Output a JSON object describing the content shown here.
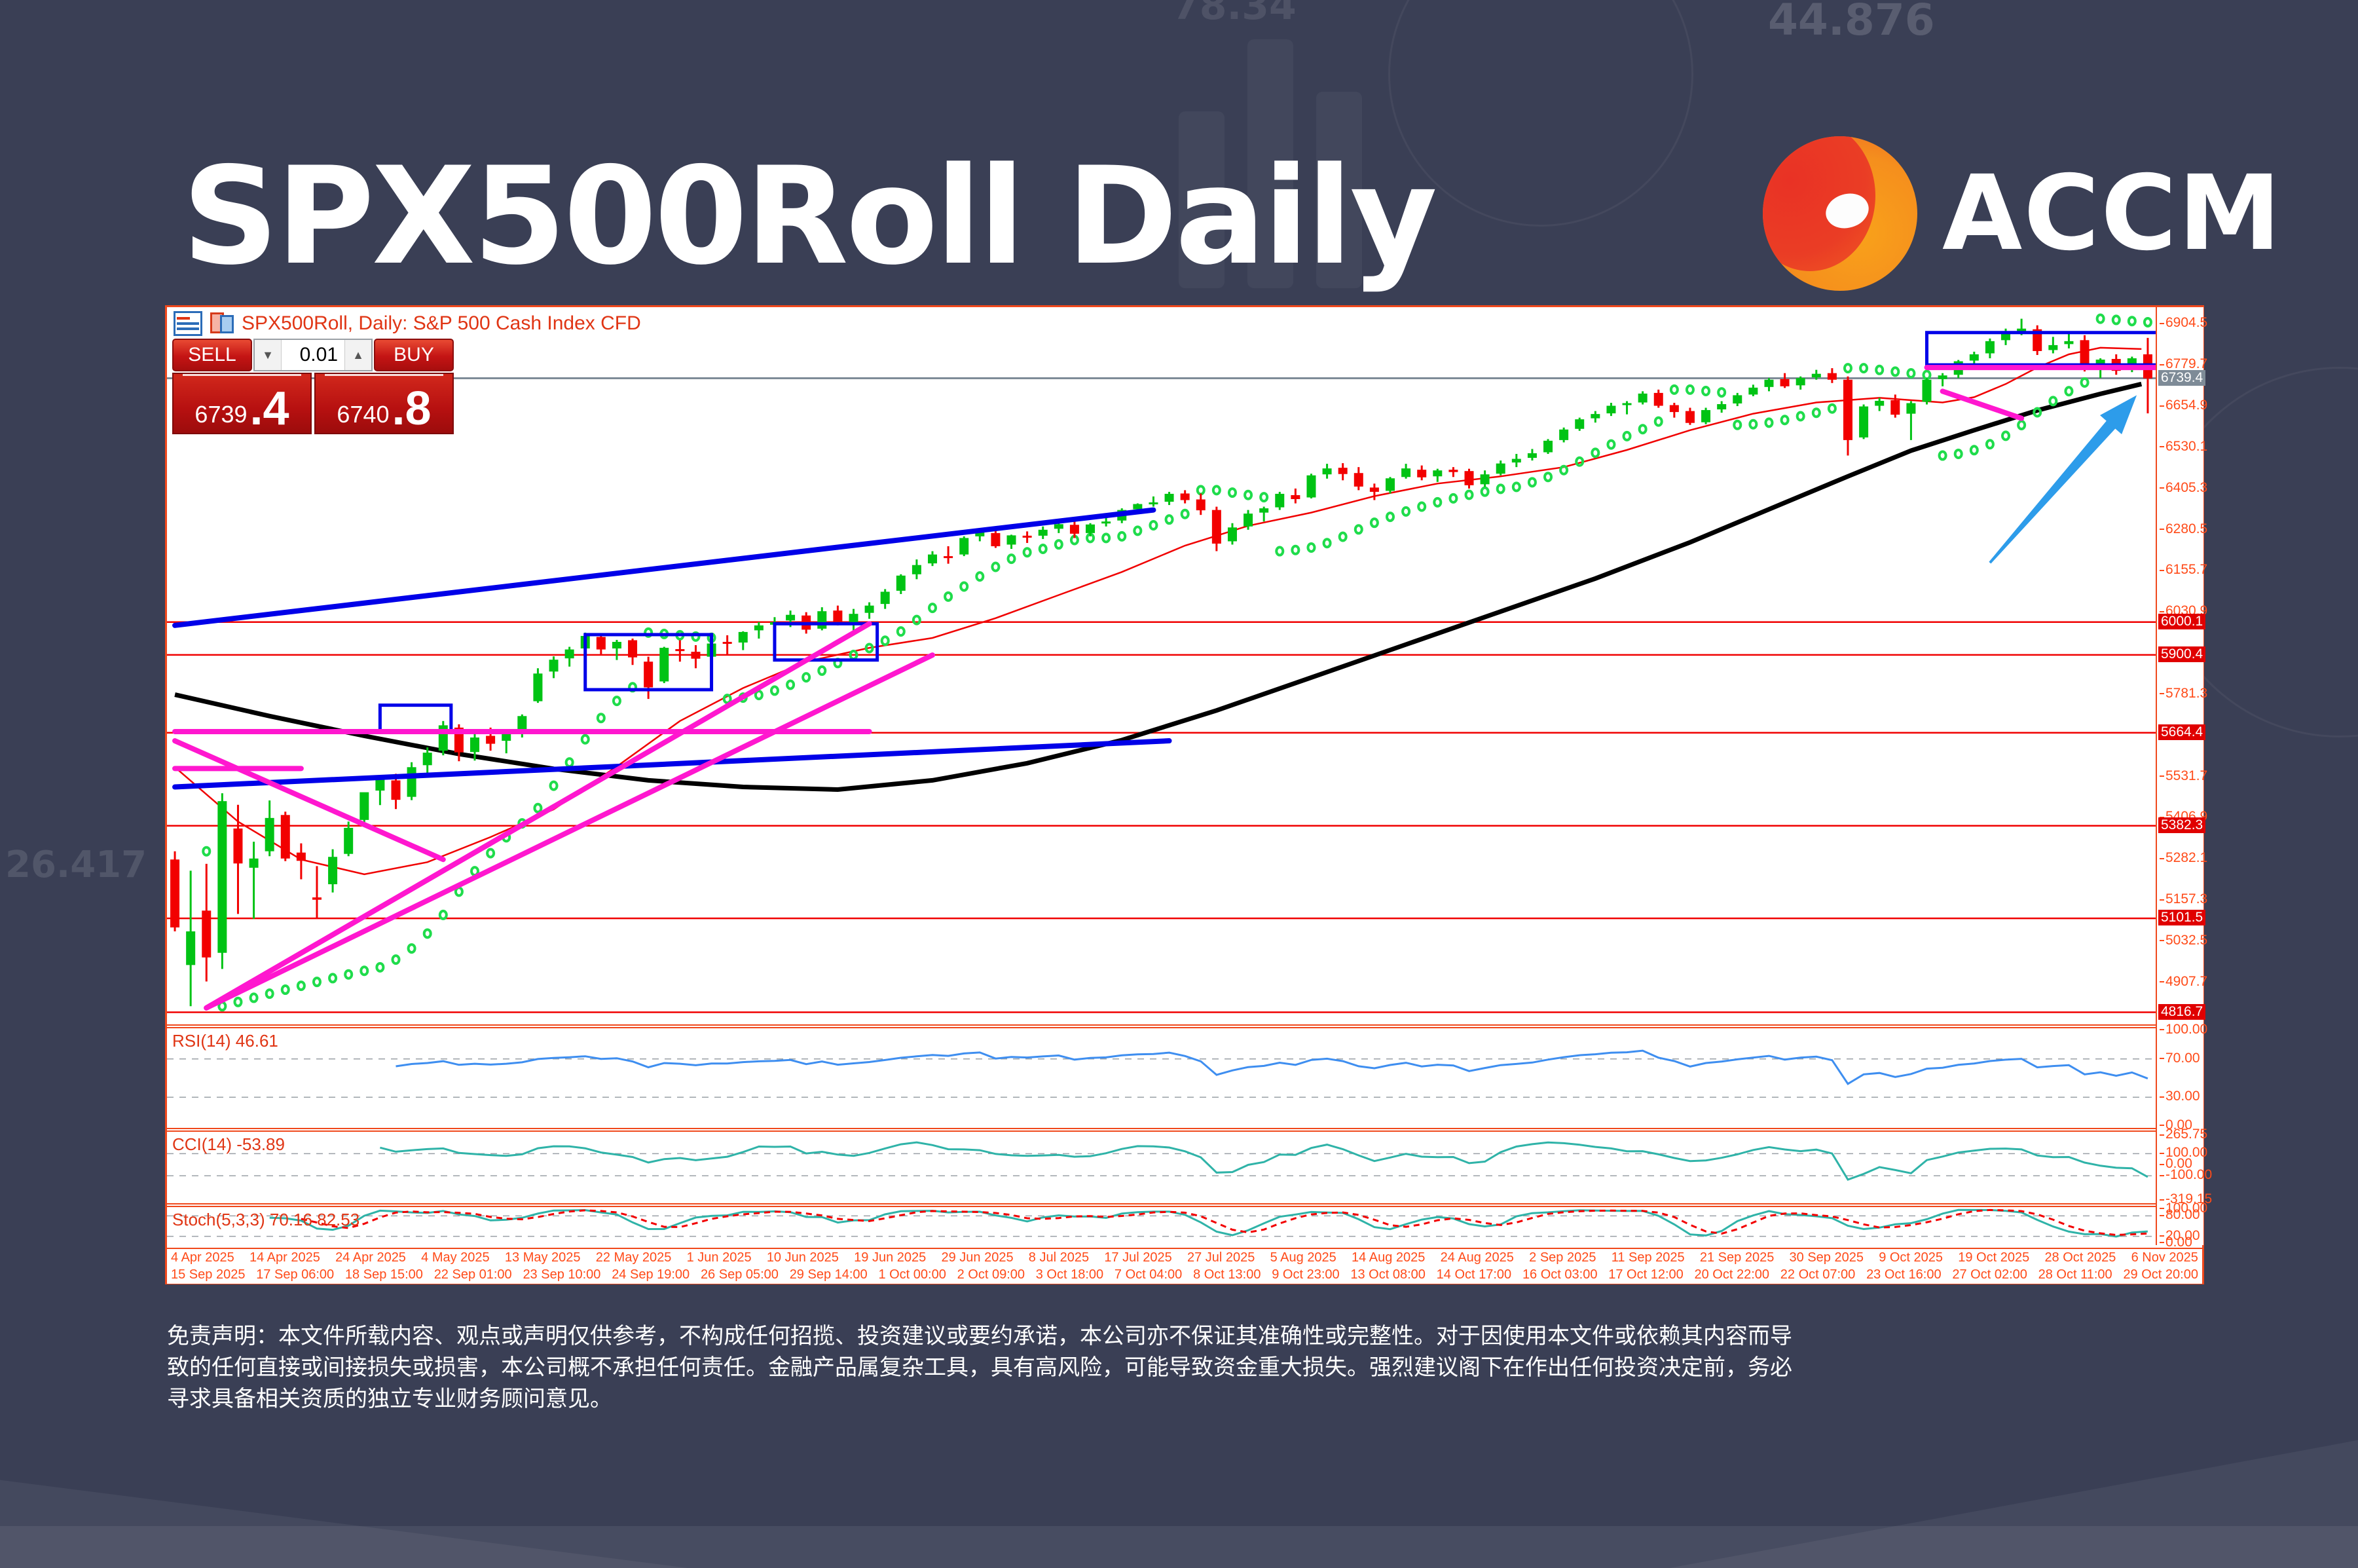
{
  "page": {
    "title": "SPX500Roll Daily",
    "brand": "ACCM"
  },
  "background": {
    "watermarks": [
      "44.876",
      "78.34",
      "26.417"
    ]
  },
  "chart_window": {
    "header": {
      "symbol_line": "SPX500Roll, Daily:  S&P 500 Cash Index CFD"
    },
    "trade_panel": {
      "sell_label": "SELL",
      "buy_label": "BUY",
      "volume": "0.01",
      "sell_price_int": "6739",
      "sell_price_frac": ".4",
      "buy_price_int": "6740",
      "buy_price_frac": ".8",
      "spin_down": "▼",
      "spin_up": "▲"
    }
  },
  "chart_data": {
    "type": "candlestick",
    "title": "SPX500Roll Daily",
    "symbol": "SPX500Roll",
    "timeframe": "Daily",
    "ylim": [
      4780,
      6955
    ],
    "current_price": 6739.4,
    "axis_ticks": [
      6904.5,
      6779.7,
      6654.9,
      6530.1,
      6405.3,
      6280.5,
      6155.7,
      6030.9,
      5781.3,
      5531.7,
      5406.9,
      5282.1,
      5157.3,
      5032.5,
      4907.7
    ],
    "level_badges": [
      6000.1,
      5900.4,
      5664.4,
      5382.3,
      5101.5,
      4816.7
    ],
    "candles": [
      [
        5280,
        5305,
        5062,
        5074
      ],
      [
        4960,
        5246,
        4835,
        5062
      ],
      [
        5125,
        5267,
        4910,
        4983
      ],
      [
        4997,
        5481,
        4948,
        5457
      ],
      [
        5374,
        5446,
        5115,
        5268
      ],
      [
        5255,
        5334,
        5100,
        5283
      ],
      [
        5305,
        5459,
        5290,
        5406
      ],
      [
        5415,
        5425,
        5275,
        5283
      ],
      [
        5301,
        5329,
        5220,
        5276
      ],
      [
        5165,
        5260,
        5101,
        5158
      ],
      [
        5205,
        5311,
        5180,
        5288
      ],
      [
        5297,
        5395,
        5290,
        5376
      ],
      [
        5400,
        5470,
        5385,
        5484
      ],
      [
        5489,
        5535,
        5445,
        5525
      ],
      [
        5520,
        5540,
        5433,
        5461
      ],
      [
        5470,
        5575,
        5460,
        5560
      ],
      [
        5566,
        5620,
        5540,
        5604
      ],
      [
        5610,
        5700,
        5596,
        5687
      ],
      [
        5680,
        5690,
        5578,
        5605
      ],
      [
        5606,
        5665,
        5580,
        5650
      ],
      [
        5655,
        5680,
        5610,
        5631
      ],
      [
        5640,
        5672,
        5602,
        5663
      ],
      [
        5670,
        5720,
        5650,
        5715
      ],
      [
        5760,
        5860,
        5755,
        5844
      ],
      [
        5850,
        5896,
        5830,
        5886
      ],
      [
        5890,
        5925,
        5865,
        5917
      ],
      [
        5920,
        5968,
        5905,
        5958
      ],
      [
        5955,
        5962,
        5900,
        5917
      ],
      [
        5920,
        5946,
        5885,
        5940
      ],
      [
        5945,
        5950,
        5870,
        5893
      ],
      [
        5880,
        5895,
        5767,
        5802
      ],
      [
        5820,
        5925,
        5815,
        5922
      ],
      [
        5918,
        5945,
        5880,
        5912
      ],
      [
        5910,
        5930,
        5860,
        5889
      ],
      [
        5895,
        5940,
        5880,
        5935
      ],
      [
        5940,
        5960,
        5900,
        5936
      ],
      [
        5938,
        5972,
        5915,
        5970
      ],
      [
        5975,
        6000,
        5950,
        5990
      ],
      [
        5992,
        6015,
        5960,
        6000
      ],
      [
        6005,
        6035,
        5985,
        6022
      ],
      [
        6020,
        6030,
        5965,
        5977
      ],
      [
        5980,
        6045,
        5975,
        6033
      ],
      [
        6035,
        6050,
        5990,
        5998
      ],
      [
        6000,
        6040,
        5975,
        6025
      ],
      [
        6028,
        6060,
        6010,
        6050
      ],
      [
        6055,
        6100,
        6040,
        6092
      ],
      [
        6095,
        6145,
        6085,
        6141
      ],
      [
        6145,
        6190,
        6130,
        6173
      ],
      [
        6178,
        6215,
        6170,
        6205
      ],
      [
        6200,
        6230,
        6177,
        6198
      ],
      [
        6205,
        6260,
        6200,
        6255
      ],
      [
        6260,
        6284,
        6245,
        6279
      ],
      [
        6270,
        6290,
        6225,
        6230
      ],
      [
        6235,
        6265,
        6222,
        6263
      ],
      [
        6262,
        6275,
        6240,
        6259
      ],
      [
        6262,
        6290,
        6252,
        6280
      ],
      [
        6283,
        6302,
        6270,
        6297
      ],
      [
        6295,
        6305,
        6255,
        6268
      ],
      [
        6270,
        6300,
        6260,
        6296
      ],
      [
        6300,
        6318,
        6290,
        6305
      ],
      [
        6308,
        6345,
        6300,
        6340
      ],
      [
        6342,
        6360,
        6330,
        6358
      ],
      [
        6360,
        6381,
        6350,
        6363
      ],
      [
        6365,
        6395,
        6355,
        6389
      ],
      [
        6390,
        6400,
        6360,
        6370
      ],
      [
        6372,
        6390,
        6325,
        6339
      ],
      [
        6340,
        6350,
        6215,
        6238
      ],
      [
        6245,
        6300,
        6235,
        6287
      ],
      [
        6290,
        6340,
        6280,
        6329
      ],
      [
        6332,
        6350,
        6305,
        6345
      ],
      [
        6348,
        6395,
        6340,
        6389
      ],
      [
        6385,
        6405,
        6360,
        6373
      ],
      [
        6378,
        6450,
        6375,
        6445
      ],
      [
        6448,
        6480,
        6435,
        6466
      ],
      [
        6468,
        6482,
        6430,
        6449
      ],
      [
        6452,
        6470,
        6400,
        6411
      ],
      [
        6408,
        6420,
        6370,
        6395
      ],
      [
        6398,
        6440,
        6390,
        6436
      ],
      [
        6440,
        6480,
        6435,
        6466
      ],
      [
        6462,
        6475,
        6430,
        6439
      ],
      [
        6442,
        6465,
        6425,
        6460
      ],
      [
        6462,
        6470,
        6440,
        6455
      ],
      [
        6458,
        6465,
        6405,
        6415
      ],
      [
        6418,
        6460,
        6410,
        6448
      ],
      [
        6450,
        6490,
        6445,
        6481
      ],
      [
        6484,
        6510,
        6470,
        6495
      ],
      [
        6498,
        6525,
        6490,
        6512
      ],
      [
        6515,
        6555,
        6510,
        6550
      ],
      [
        6552,
        6590,
        6545,
        6584
      ],
      [
        6586,
        6620,
        6580,
        6615
      ],
      [
        6618,
        6640,
        6605,
        6631
      ],
      [
        6633,
        6665,
        6625,
        6656
      ],
      [
        6658,
        6670,
        6630,
        6664
      ],
      [
        6666,
        6700,
        6660,
        6693
      ],
      [
        6695,
        6705,
        6650,
        6656
      ],
      [
        6658,
        6665,
        6620,
        6637
      ],
      [
        6640,
        6650,
        6598,
        6604
      ],
      [
        6606,
        6650,
        6600,
        6643
      ],
      [
        6645,
        6670,
        6635,
        6661
      ],
      [
        6663,
        6695,
        6655,
        6688
      ],
      [
        6690,
        6720,
        6685,
        6711
      ],
      [
        6713,
        6740,
        6700,
        6735
      ],
      [
        6737,
        6755,
        6710,
        6715
      ],
      [
        6718,
        6745,
        6705,
        6740
      ],
      [
        6742,
        6765,
        6735,
        6753
      ],
      [
        6755,
        6770,
        6725,
        6735
      ],
      [
        6735,
        6745,
        6505,
        6552
      ],
      [
        6560,
        6660,
        6555,
        6654
      ],
      [
        6656,
        6680,
        6640,
        6671
      ],
      [
        6673,
        6690,
        6620,
        6629
      ],
      [
        6632,
        6670,
        6552,
        6664
      ],
      [
        6668,
        6740,
        6660,
        6735
      ],
      [
        6737,
        6755,
        6715,
        6748
      ],
      [
        6750,
        6795,
        6740,
        6791
      ],
      [
        6793,
        6820,
        6780,
        6812
      ],
      [
        6815,
        6860,
        6800,
        6852
      ],
      [
        6855,
        6890,
        6840,
        6875
      ],
      [
        6878,
        6920,
        6870,
        6890
      ],
      [
        6888,
        6900,
        6810,
        6822
      ],
      [
        6825,
        6865,
        6815,
        6840
      ],
      [
        6843,
        6880,
        6830,
        6852
      ],
      [
        6855,
        6870,
        6760,
        6771
      ],
      [
        6774,
        6800,
        6740,
        6796
      ],
      [
        6798,
        6812,
        6750,
        6762
      ],
      [
        6765,
        6805,
        6758,
        6800
      ],
      [
        6812,
        6862,
        6633,
        6739
      ]
    ],
    "ma_black": [
      [
        0,
        5780
      ],
      [
        6,
        5715
      ],
      [
        12,
        5655
      ],
      [
        18,
        5600
      ],
      [
        24,
        5555
      ],
      [
        30,
        5520
      ],
      [
        36,
        5500
      ],
      [
        42,
        5492
      ],
      [
        48,
        5520
      ],
      [
        54,
        5572
      ],
      [
        60,
        5642
      ],
      [
        66,
        5732
      ],
      [
        72,
        5832
      ],
      [
        78,
        5932
      ],
      [
        84,
        6032
      ],
      [
        90,
        6132
      ],
      [
        96,
        6242
      ],
      [
        102,
        6362
      ],
      [
        106,
        6442
      ],
      [
        110,
        6520
      ],
      [
        114,
        6582
      ],
      [
        118,
        6642
      ],
      [
        122,
        6692
      ],
      [
        124.6,
        6722
      ]
    ],
    "ma_red": [
      [
        0,
        5560
      ],
      [
        4,
        5395
      ],
      [
        8,
        5280
      ],
      [
        12,
        5235
      ],
      [
        16,
        5272
      ],
      [
        20,
        5348
      ],
      [
        24,
        5432
      ],
      [
        28,
        5562
      ],
      [
        32,
        5700
      ],
      [
        36,
        5800
      ],
      [
        40,
        5880
      ],
      [
        44,
        5922
      ],
      [
        48,
        5952
      ],
      [
        52,
        6012
      ],
      [
        56,
        6082
      ],
      [
        60,
        6152
      ],
      [
        64,
        6232
      ],
      [
        68,
        6292
      ],
      [
        72,
        6332
      ],
      [
        76,
        6382
      ],
      [
        80,
        6420
      ],
      [
        84,
        6442
      ],
      [
        88,
        6470
      ],
      [
        92,
        6522
      ],
      [
        96,
        6582
      ],
      [
        100,
        6632
      ],
      [
        104,
        6666
      ],
      [
        108,
        6680
      ],
      [
        112,
        6666
      ],
      [
        114,
        6682
      ],
      [
        116,
        6722
      ],
      [
        118,
        6772
      ],
      [
        120,
        6812
      ],
      [
        122,
        6832
      ],
      [
        124.6,
        6828
      ]
    ],
    "trendlines": [
      {
        "color": "#0000e8",
        "from": [
          0,
          5990
        ],
        "to": [
          62,
          6340
        ],
        "width": 8
      },
      {
        "color": "#0000e8",
        "from": [
          0,
          5500
        ],
        "to": [
          63,
          5640
        ],
        "width": 8
      },
      {
        "color": "#ff17cf",
        "from": [
          0,
          5668
        ],
        "to": [
          44,
          5668
        ],
        "width": 8
      },
      {
        "color": "#ff17cf",
        "from": [
          0,
          5556
        ],
        "to": [
          8,
          5556
        ],
        "width": 8
      },
      {
        "color": "#ff17cf",
        "from": [
          0,
          5640
        ],
        "to": [
          17,
          5280
        ],
        "width": 8
      },
      {
        "color": "#ff17cf",
        "from": [
          2,
          4830
        ],
        "to": [
          44,
          5995
        ],
        "width": 8
      },
      {
        "color": "#ff17cf",
        "from": [
          2,
          4830
        ],
        "to": [
          48,
          5900
        ],
        "width": 8
      },
      {
        "color": "#ff17cf",
        "from": [
          2,
          4830
        ],
        "to": [
          24,
          5440
        ],
        "width": 8
      },
      {
        "color": "#ff17cf",
        "from": [
          111,
          6772
        ],
        "to": [
          125.6,
          6772
        ],
        "width": 8
      },
      {
        "color": "#ff17cf",
        "from": [
          112,
          6700
        ],
        "to": [
          117,
          6618
        ],
        "width": 8
      }
    ],
    "boxes": [
      {
        "from": [
          13,
          5748
        ],
        "to": [
          17.5,
          5665
        ]
      },
      {
        "from": [
          26,
          5962
        ],
        "to": [
          34,
          5795
        ]
      },
      {
        "from": [
          38,
          5995
        ],
        "to": [
          44.5,
          5885
        ]
      },
      {
        "from": [
          111,
          6878
        ],
        "to": [
          125.7,
          6780
        ]
      }
    ],
    "arrow": {
      "from": [
        115,
        6180
      ],
      "to": [
        124.3,
        6688
      ],
      "color": "#2d9cea"
    },
    "indicators": {
      "rsi": {
        "label": "RSI(14) 46.61",
        "period": 14,
        "levels": [
          70,
          30
        ],
        "scale": [
          "100.00",
          "70.00",
          "30.00",
          "0.00"
        ],
        "scale_vals": [
          100,
          70,
          30,
          0
        ],
        "range": [
          0,
          100
        ]
      },
      "cci": {
        "label": "CCI(14) -53.89",
        "period": 14,
        "levels": [
          100,
          -100
        ],
        "scale": [
          "265.75",
          "100.00",
          "0.00",
          "-100.00",
          "-319.15"
        ],
        "scale_vals": [
          265.75,
          100,
          0,
          -100,
          -319.15
        ],
        "range": [
          -330,
          280
        ]
      },
      "stoch": {
        "label": "Stoch(5,3,3) 70.16 82.53",
        "levels": [
          80,
          20
        ],
        "scale": [
          "100.00",
          "80.00",
          "20.00",
          "0.00"
        ],
        "scale_vals": [
          100,
          80,
          20,
          0
        ],
        "range": [
          0,
          100
        ]
      }
    },
    "date_labels_row1": [
      "4 Apr 2025",
      "14 Apr 2025",
      "24 Apr 2025",
      "4 May 2025",
      "13 May 2025",
      "22 May 2025",
      "1 Jun 2025",
      "10 Jun 2025",
      "19 Jun 2025",
      "29 Jun 2025",
      "8 Jul 2025",
      "17 Jul 2025",
      "27 Jul 2025",
      "5 Aug 2025",
      "14 Aug 2025",
      "24 Aug 2025",
      "2 Sep 2025",
      "11 Sep 2025",
      "21 Sep 2025",
      "30 Sep 2025",
      "9 Oct 2025",
      "19 Oct 2025",
      "28 Oct 2025",
      "6 Nov 2025"
    ],
    "date_labels_row2": [
      "15 Sep 2025",
      "17 Sep 06:00",
      "18 Sep 15:00",
      "22 Sep 01:00",
      "23 Sep 10:00",
      "24 Sep 19:00",
      "26 Sep 05:00",
      "29 Sep 14:00",
      "1 Oct 00:00",
      "2 Oct 09:00",
      "3 Oct 18:00",
      "7 Oct 04:00",
      "8 Oct 13:00",
      "9 Oct 23:00",
      "13 Oct 08:00",
      "14 Oct 17:00",
      "16 Oct 03:00",
      "17 Oct 12:00",
      "20 Oct 22:00",
      "22 Oct 07:00",
      "23 Oct 16:00",
      "27 Oct 02:00",
      "28 Oct 11:00",
      "29 Oct 20:00"
    ]
  },
  "disclaimer": {
    "lines": [
      "免责声明：本文件所载内容、观点或声明仅供参考，不构成任何招揽、投资建议或要约承诺，本公司亦不保证其准确性或完整性。对于因使用本文件或依赖其内容而导",
      "致的任何直接或间接损失或损害，本公司概不承担任何责任。金融产品属复杂工具，具有高风险，可能导致资金重大损失。强烈建议阁下在作出任何投资决定前，务必",
      "寻求具备相关资质的独立专业财务顾问意见。"
    ]
  }
}
